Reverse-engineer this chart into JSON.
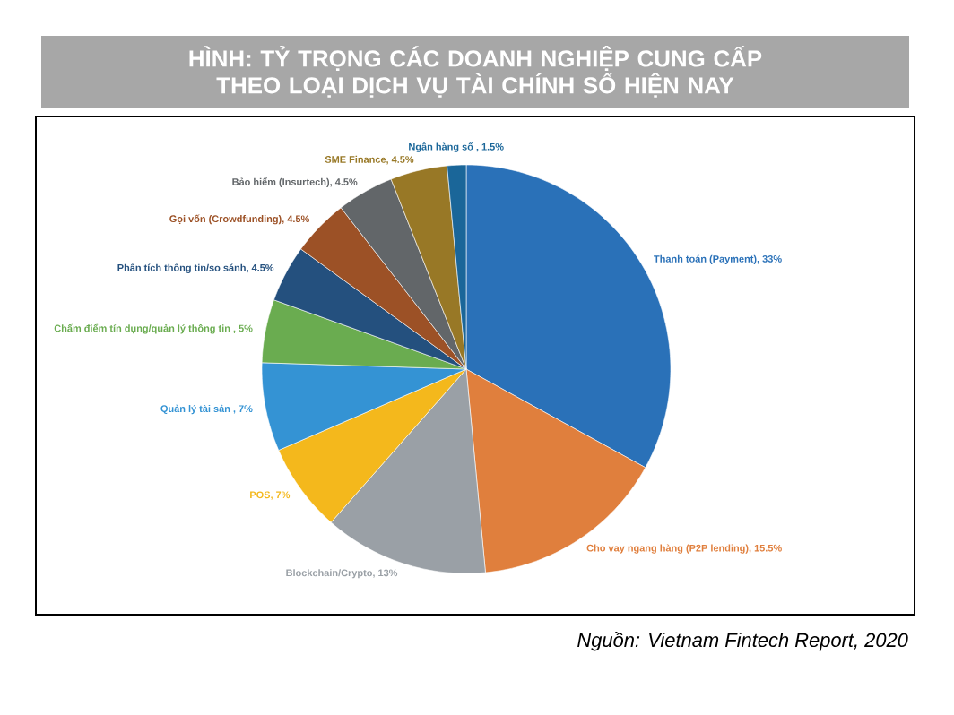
{
  "chart_data": {
    "type": "pie",
    "title": "HÌNH: TỶ TRỌNG CÁC DOANH NGHIỆP CUNG CẤP THEO LOẠI DỊCH VỤ TÀI CHÍNH SỐ HIỆN NAY",
    "categories": [
      "Thanh toán (Payment), 33%",
      "Cho vay ngang hàng (P2P lending), 15.5%",
      "Blockchain/Crypto, 13%",
      "POS, 7%",
      "Quản lý tài sản , 7%",
      "Chấm điểm tín dụng/quản lý thông tin , 5%",
      "Phân tích thông tin/so sánh, 4.5%",
      "Gọi vốn (Crowdfunding), 4.5%",
      "Bảo hiểm (Insurtech), 4.5%",
      "SME Finance, 4.5%",
      "Ngân hàng số , 1.5%"
    ],
    "values": [
      33,
      15.5,
      13,
      7,
      7,
      5,
      4.5,
      4.5,
      4.5,
      4.5,
      1.5
    ],
    "colors": [
      "#2a71b8",
      "#e07f3d",
      "#9aa0a6",
      "#f4b81c",
      "#3493d4",
      "#6aac50",
      "#24507e",
      "#9c5126",
      "#626669",
      "#987826",
      "#1a6699"
    ],
    "annotations": [
      "Nguồn: Vietnam Fintech Report, 2020"
    ]
  }
}
